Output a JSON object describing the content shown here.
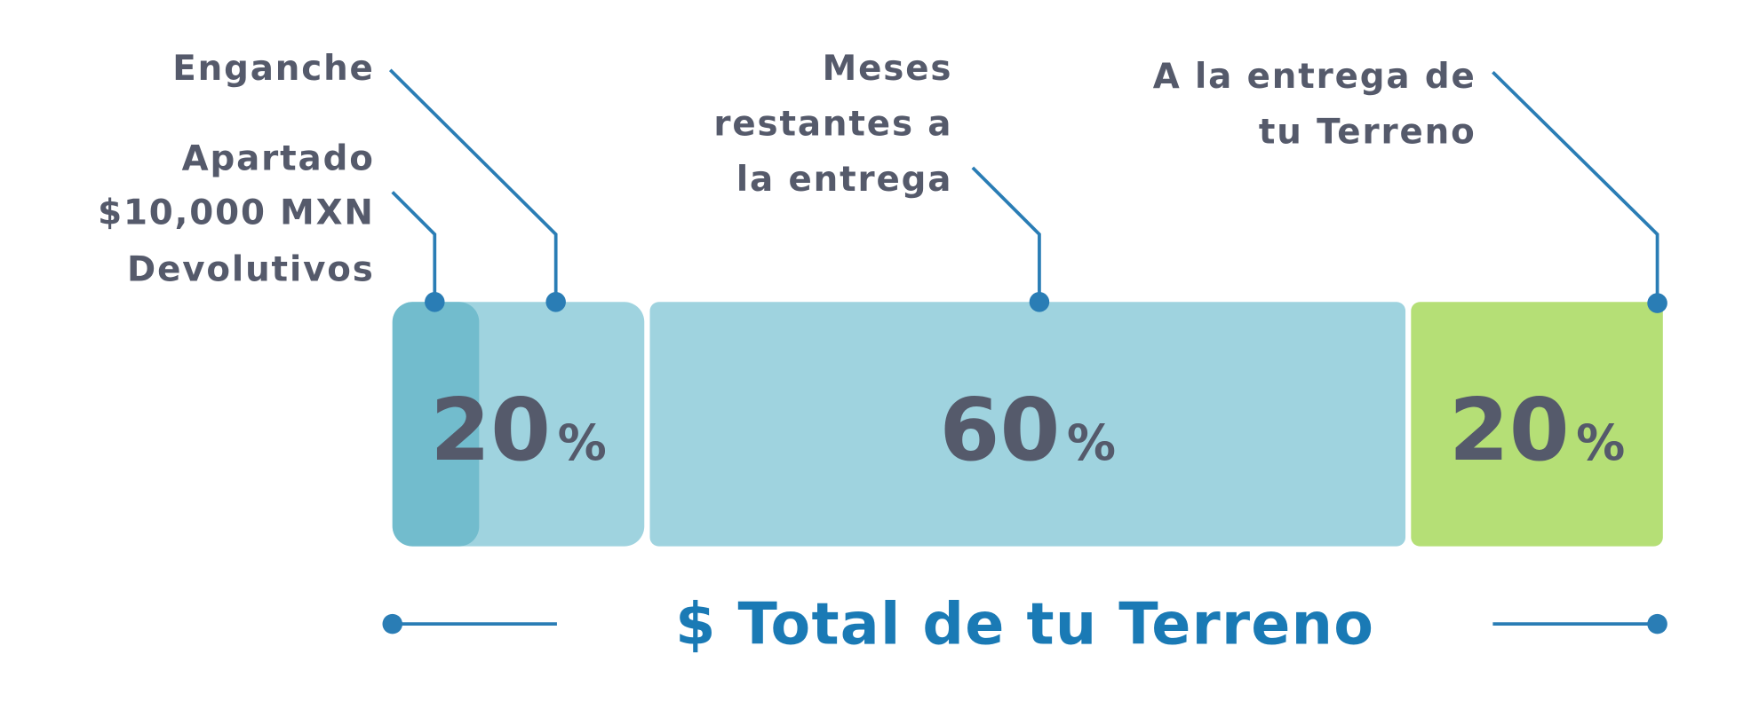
{
  "callouts": {
    "enganche": [
      "Enganche"
    ],
    "apartado": [
      "Apartado",
      "$10,000 MXN",
      "Devolutivos"
    ],
    "meses": [
      "Meses",
      "restantes a",
      "la entrega"
    ],
    "entrega": [
      "A la entrega de",
      "tu Terreno"
    ]
  },
  "segments": [
    {
      "value": 20,
      "unit": "%",
      "color": "#9fd3df"
    },
    {
      "value": 60,
      "unit": "%",
      "color": "#9fd3df"
    },
    {
      "value": 20,
      "unit": "%",
      "color": "#b5df76"
    }
  ],
  "total": "$ Total de tu Terreno"
}
